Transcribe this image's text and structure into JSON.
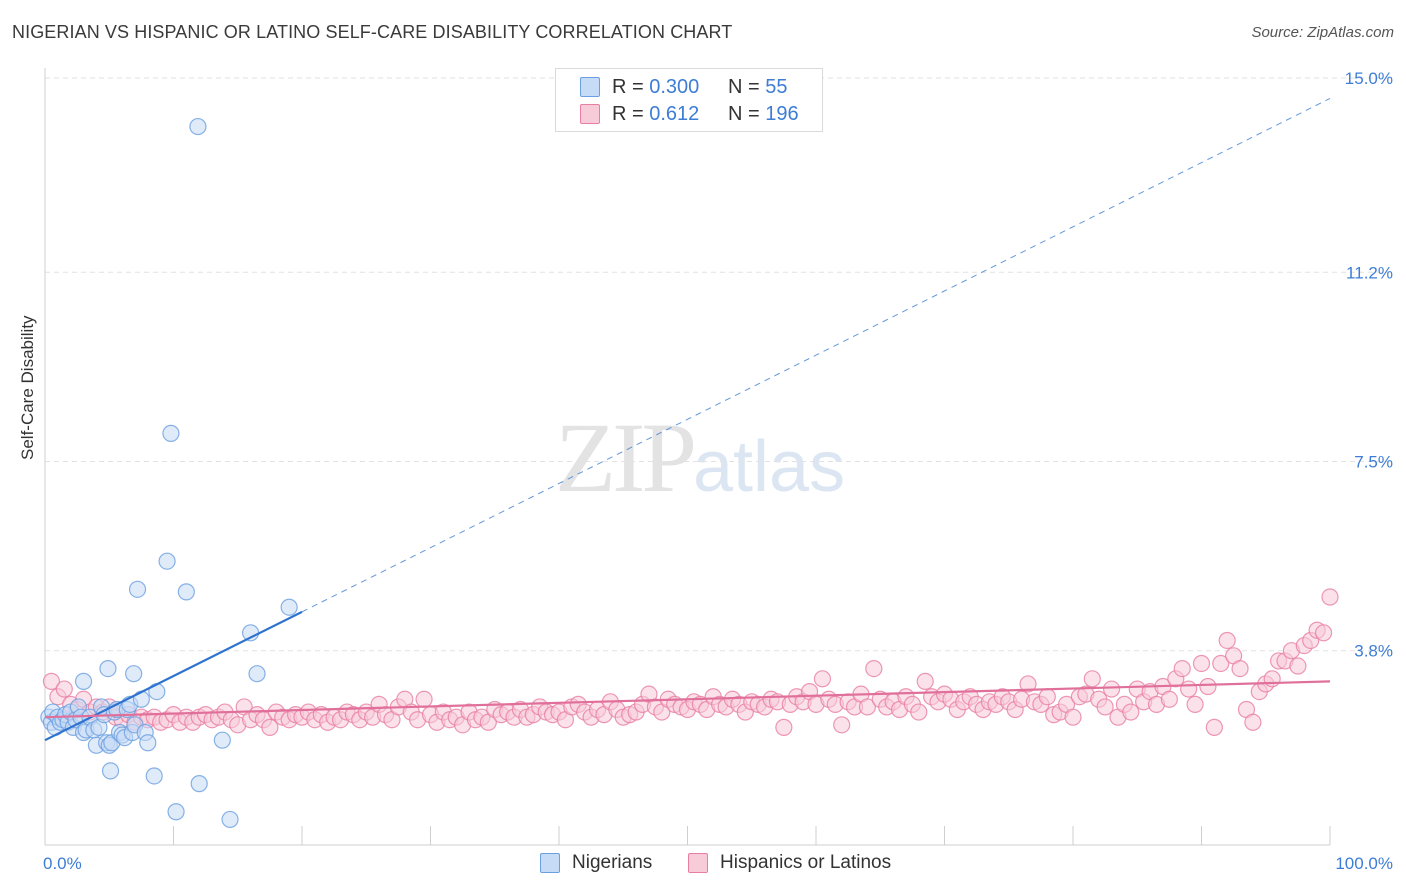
{
  "title": "NIGERIAN VS HISPANIC OR LATINO SELF-CARE DISABILITY CORRELATION CHART",
  "source": "Source: ZipAtlas.com",
  "legend": {
    "rows": [
      {
        "r_label": "R =",
        "r_value": "0.300",
        "n_label": "N =",
        "n_value": "55",
        "color": "#a8c8f0"
      },
      {
        "r_label": "R =",
        "r_value": "0.612",
        "n_label": "N =",
        "n_value": "196",
        "color": "#f5b8cb"
      }
    ]
  },
  "bottom_legend": [
    "Nigerians",
    "Hispanics or Latinos"
  ],
  "watermark": {
    "zip": "ZIP",
    "atlas": "atlas"
  },
  "chart_data": {
    "type": "scatter",
    "xlabel": "",
    "ylabel": "Self-Care Disability",
    "xlim": [
      0,
      100
    ],
    "ylim": [
      0,
      15.0
    ],
    "x_tick_labels": [
      "0.0%",
      "100.0%"
    ],
    "y_ticks": [
      3.8,
      7.5,
      11.2,
      15.0
    ],
    "y_tick_labels": [
      "3.8%",
      "7.5%",
      "11.2%",
      "15.0%"
    ],
    "grid": "horizontal dashed",
    "series": [
      {
        "name": "Nigerians",
        "color": "#6a9fe0",
        "fill": "#c6dbf5",
        "trend": {
          "x0": 0,
          "y0": 2.05,
          "x1": 100,
          "y1": 14.6,
          "solid_until": 20
        },
        "points": [
          [
            0.3,
            2.5
          ],
          [
            0.5,
            2.4
          ],
          [
            0.6,
            2.6
          ],
          [
            0.8,
            2.3
          ],
          [
            1.0,
            2.5
          ],
          [
            1.2,
            2.4
          ],
          [
            1.4,
            2.45
          ],
          [
            1.6,
            2.55
          ],
          [
            1.8,
            2.4
          ],
          [
            2.0,
            2.6
          ],
          [
            2.2,
            2.3
          ],
          [
            2.4,
            2.45
          ],
          [
            2.6,
            2.7
          ],
          [
            2.8,
            2.5
          ],
          [
            3.0,
            2.2
          ],
          [
            3.2,
            2.25
          ],
          [
            3.5,
            2.5
          ],
          [
            3.8,
            2.25
          ],
          [
            3.0,
            3.2
          ],
          [
            4.0,
            1.95
          ],
          [
            4.2,
            2.3
          ],
          [
            4.4,
            2.7
          ],
          [
            4.6,
            2.55
          ],
          [
            4.8,
            2.0
          ],
          [
            5.0,
            1.95
          ],
          [
            5.2,
            2.0
          ],
          [
            5.4,
            2.6
          ],
          [
            5.6,
            2.65
          ],
          [
            4.9,
            3.45
          ],
          [
            5.1,
            1.45
          ],
          [
            5.8,
            2.2
          ],
          [
            6.0,
            2.15
          ],
          [
            6.2,
            2.1
          ],
          [
            6.4,
            2.65
          ],
          [
            6.6,
            2.75
          ],
          [
            6.8,
            2.2
          ],
          [
            6.9,
            3.35
          ],
          [
            7.0,
            2.35
          ],
          [
            7.5,
            2.85
          ],
          [
            7.2,
            5.0
          ],
          [
            7.8,
            2.2
          ],
          [
            8.0,
            2.0
          ],
          [
            8.5,
            1.35
          ],
          [
            8.7,
            3.0
          ],
          [
            9.5,
            5.55
          ],
          [
            9.8,
            8.05
          ],
          [
            10.2,
            0.65
          ],
          [
            11.0,
            4.95
          ],
          [
            11.9,
            14.05
          ],
          [
            12.0,
            1.2
          ],
          [
            13.8,
            2.05
          ],
          [
            14.4,
            0.5
          ],
          [
            16.0,
            4.15
          ],
          [
            16.5,
            3.35
          ],
          [
            19.0,
            4.65
          ]
        ]
      },
      {
        "name": "Hispanics or Latinos",
        "color": "#e87ea1",
        "fill": "#f8cbd8",
        "trend": {
          "x0": 0,
          "y0": 2.5,
          "x1": 100,
          "y1": 3.2
        },
        "points": [
          [
            0.5,
            3.2
          ],
          [
            1.0,
            2.9
          ],
          [
            1.5,
            3.05
          ],
          [
            2.0,
            2.75
          ],
          [
            2.5,
            2.65
          ],
          [
            3.0,
            2.85
          ],
          [
            3.5,
            2.6
          ],
          [
            4.0,
            2.7
          ],
          [
            4.5,
            2.6
          ],
          [
            5.0,
            2.7
          ],
          [
            5.5,
            2.5
          ],
          [
            6.0,
            2.45
          ],
          [
            6.5,
            2.55
          ],
          [
            7.0,
            2.4
          ],
          [
            7.5,
            2.5
          ],
          [
            8.0,
            2.45
          ],
          [
            8.5,
            2.5
          ],
          [
            9.0,
            2.4
          ],
          [
            9.5,
            2.45
          ],
          [
            10.0,
            2.55
          ],
          [
            10.5,
            2.4
          ],
          [
            11.0,
            2.5
          ],
          [
            11.5,
            2.4
          ],
          [
            12.0,
            2.5
          ],
          [
            12.5,
            2.55
          ],
          [
            13.0,
            2.45
          ],
          [
            13.5,
            2.5
          ],
          [
            14.0,
            2.6
          ],
          [
            14.5,
            2.45
          ],
          [
            15.0,
            2.35
          ],
          [
            15.5,
            2.7
          ],
          [
            16.0,
            2.45
          ],
          [
            16.5,
            2.55
          ],
          [
            17.0,
            2.45
          ],
          [
            17.5,
            2.3
          ],
          [
            18.0,
            2.6
          ],
          [
            18.5,
            2.5
          ],
          [
            19.0,
            2.45
          ],
          [
            19.5,
            2.55
          ],
          [
            20.0,
            2.5
          ],
          [
            20.5,
            2.6
          ],
          [
            21.0,
            2.45
          ],
          [
            21.5,
            2.55
          ],
          [
            22.0,
            2.4
          ],
          [
            22.5,
            2.5
          ],
          [
            23.0,
            2.45
          ],
          [
            23.5,
            2.6
          ],
          [
            24.0,
            2.55
          ],
          [
            24.5,
            2.45
          ],
          [
            25.0,
            2.6
          ],
          [
            25.5,
            2.5
          ],
          [
            26.0,
            2.75
          ],
          [
            26.5,
            2.55
          ],
          [
            27.0,
            2.45
          ],
          [
            27.5,
            2.7
          ],
          [
            28.0,
            2.85
          ],
          [
            28.5,
            2.6
          ],
          [
            29.0,
            2.45
          ],
          [
            29.5,
            2.85
          ],
          [
            30.0,
            2.55
          ],
          [
            30.5,
            2.4
          ],
          [
            31.0,
            2.6
          ],
          [
            31.5,
            2.45
          ],
          [
            32.0,
            2.5
          ],
          [
            32.5,
            2.35
          ],
          [
            33.0,
            2.6
          ],
          [
            33.5,
            2.45
          ],
          [
            34.0,
            2.5
          ],
          [
            34.5,
            2.4
          ],
          [
            35.0,
            2.65
          ],
          [
            35.5,
            2.55
          ],
          [
            36.0,
            2.6
          ],
          [
            36.5,
            2.5
          ],
          [
            37.0,
            2.65
          ],
          [
            37.5,
            2.5
          ],
          [
            38.0,
            2.55
          ],
          [
            38.5,
            2.7
          ],
          [
            39.0,
            2.6
          ],
          [
            39.5,
            2.55
          ],
          [
            40.0,
            2.6
          ],
          [
            40.5,
            2.45
          ],
          [
            41.0,
            2.7
          ],
          [
            41.5,
            2.75
          ],
          [
            42.0,
            2.6
          ],
          [
            42.5,
            2.5
          ],
          [
            43.0,
            2.65
          ],
          [
            43.5,
            2.55
          ],
          [
            44.0,
            2.8
          ],
          [
            44.5,
            2.65
          ],
          [
            45.0,
            2.5
          ],
          [
            45.5,
            2.55
          ],
          [
            46.0,
            2.6
          ],
          [
            46.5,
            2.75
          ],
          [
            47.0,
            2.95
          ],
          [
            47.5,
            2.7
          ],
          [
            48.0,
            2.6
          ],
          [
            48.5,
            2.85
          ],
          [
            49.0,
            2.75
          ],
          [
            49.5,
            2.7
          ],
          [
            50.0,
            2.65
          ],
          [
            50.5,
            2.8
          ],
          [
            51.0,
            2.75
          ],
          [
            51.5,
            2.65
          ],
          [
            52.0,
            2.9
          ],
          [
            52.5,
            2.75
          ],
          [
            53.0,
            2.7
          ],
          [
            53.5,
            2.85
          ],
          [
            54.0,
            2.75
          ],
          [
            54.5,
            2.6
          ],
          [
            55.0,
            2.8
          ],
          [
            55.5,
            2.75
          ],
          [
            56.0,
            2.7
          ],
          [
            56.5,
            2.85
          ],
          [
            57.0,
            2.8
          ],
          [
            57.5,
            2.3
          ],
          [
            58.0,
            2.75
          ],
          [
            58.5,
            2.9
          ],
          [
            59.0,
            2.8
          ],
          [
            59.5,
            3.0
          ],
          [
            60.0,
            2.75
          ],
          [
            60.5,
            3.25
          ],
          [
            61.0,
            2.85
          ],
          [
            61.5,
            2.75
          ],
          [
            62.0,
            2.35
          ],
          [
            62.5,
            2.8
          ],
          [
            63.0,
            2.7
          ],
          [
            63.5,
            2.95
          ],
          [
            64.0,
            2.7
          ],
          [
            64.5,
            3.45
          ],
          [
            65.0,
            2.85
          ],
          [
            65.5,
            2.7
          ],
          [
            66.0,
            2.8
          ],
          [
            66.5,
            2.65
          ],
          [
            67.0,
            2.9
          ],
          [
            67.5,
            2.75
          ],
          [
            68.0,
            2.6
          ],
          [
            68.5,
            3.2
          ],
          [
            69.0,
            2.9
          ],
          [
            69.5,
            2.8
          ],
          [
            70.0,
            2.95
          ],
          [
            70.5,
            2.85
          ],
          [
            71.0,
            2.65
          ],
          [
            71.5,
            2.8
          ],
          [
            72.0,
            2.9
          ],
          [
            72.5,
            2.75
          ],
          [
            73.0,
            2.65
          ],
          [
            73.5,
            2.8
          ],
          [
            74.0,
            2.75
          ],
          [
            74.5,
            2.9
          ],
          [
            75.0,
            2.8
          ],
          [
            75.5,
            2.65
          ],
          [
            76.0,
            2.85
          ],
          [
            76.5,
            3.15
          ],
          [
            77.0,
            2.8
          ],
          [
            77.5,
            2.75
          ],
          [
            78.0,
            2.9
          ],
          [
            78.5,
            2.55
          ],
          [
            79.0,
            2.6
          ],
          [
            79.5,
            2.75
          ],
          [
            80.0,
            2.5
          ],
          [
            80.5,
            2.9
          ],
          [
            81.0,
            2.95
          ],
          [
            81.5,
            3.25
          ],
          [
            82.0,
            2.85
          ],
          [
            82.5,
            2.7
          ],
          [
            83.0,
            3.05
          ],
          [
            83.5,
            2.5
          ],
          [
            84.0,
            2.75
          ],
          [
            84.5,
            2.6
          ],
          [
            85.0,
            3.05
          ],
          [
            85.5,
            2.8
          ],
          [
            86.0,
            3.0
          ],
          [
            86.5,
            2.75
          ],
          [
            87.0,
            3.1
          ],
          [
            87.5,
            2.85
          ],
          [
            88.0,
            3.25
          ],
          [
            88.5,
            3.45
          ],
          [
            89.0,
            3.05
          ],
          [
            89.5,
            2.75
          ],
          [
            90.0,
            3.55
          ],
          [
            90.5,
            3.1
          ],
          [
            91.0,
            2.3
          ],
          [
            91.5,
            3.55
          ],
          [
            92.0,
            4.0
          ],
          [
            92.5,
            3.7
          ],
          [
            93.0,
            3.45
          ],
          [
            93.5,
            2.65
          ],
          [
            94.0,
            2.4
          ],
          [
            94.5,
            3.0
          ],
          [
            95.0,
            3.15
          ],
          [
            95.5,
            3.25
          ],
          [
            96.0,
            3.6
          ],
          [
            96.5,
            3.6
          ],
          [
            97.0,
            3.8
          ],
          [
            97.5,
            3.5
          ],
          [
            98.0,
            3.9
          ],
          [
            98.5,
            4.0
          ],
          [
            99.0,
            4.2
          ],
          [
            99.5,
            4.15
          ],
          [
            100.0,
            4.85
          ]
        ]
      }
    ]
  }
}
